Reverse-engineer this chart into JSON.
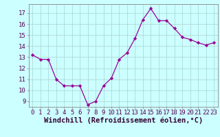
{
  "x": [
    0,
    1,
    2,
    3,
    4,
    5,
    6,
    7,
    8,
    9,
    10,
    11,
    12,
    13,
    14,
    15,
    16,
    17,
    18,
    19,
    20,
    21,
    22,
    23
  ],
  "y": [
    13.2,
    12.8,
    12.8,
    11.0,
    10.4,
    10.4,
    10.4,
    8.7,
    9.0,
    10.4,
    11.1,
    12.8,
    13.4,
    14.7,
    16.4,
    17.4,
    16.3,
    16.3,
    15.6,
    14.8,
    14.6,
    14.3,
    14.1,
    14.3
  ],
  "xlim": [
    -0.5,
    23.5
  ],
  "ylim": [
    8.5,
    17.8
  ],
  "yticks": [
    9,
    10,
    11,
    12,
    13,
    14,
    15,
    16,
    17
  ],
  "xticks": [
    0,
    1,
    2,
    3,
    4,
    5,
    6,
    7,
    8,
    9,
    10,
    11,
    12,
    13,
    14,
    15,
    16,
    17,
    18,
    19,
    20,
    21,
    22,
    23
  ],
  "xlabel": "Windchill (Refroidissement éolien,°C)",
  "line_color": "#990099",
  "marker_color": "#990099",
  "bg_color": "#ccffff",
  "grid_color": "#b0d8d8",
  "tick_fontsize": 6.5,
  "xlabel_fontsize": 7.5
}
